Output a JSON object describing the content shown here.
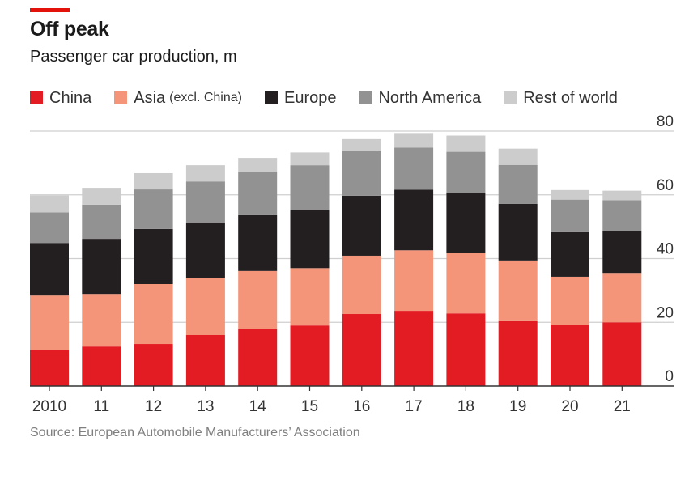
{
  "header": {
    "title": "Off peak",
    "subtitle": "Passenger car production, m"
  },
  "source": "Source: European Automobile Manufacturers’ Association",
  "colors": {
    "accent": "#e3120b",
    "China": "#e31b23",
    "Asia (excl. China)": "#f4957a",
    "Europe": "#231f20",
    "North America": "#929292",
    "Rest of world": "#cccccc",
    "grid": "#cfcfcf",
    "axis": "#333333"
  },
  "legend": [
    {
      "label": "China",
      "note": "",
      "key": "China"
    },
    {
      "label": "Asia",
      "note": "(excl. China)",
      "key": "Asia (excl. China)"
    },
    {
      "label": "Europe",
      "note": "",
      "key": "Europe"
    },
    {
      "label": "North America",
      "note": "",
      "key": "North America"
    },
    {
      "label": "Rest of world",
      "note": "",
      "key": "Rest of world"
    }
  ],
  "chart_data": {
    "type": "bar",
    "stacked": true,
    "title": "Off peak",
    "subtitle": "Passenger car production, m",
    "xlabel": "",
    "ylabel": "",
    "categories": [
      "2010",
      "11",
      "12",
      "13",
      "14",
      "15",
      "16",
      "17",
      "18",
      "19",
      "20",
      "21"
    ],
    "series": [
      {
        "name": "China",
        "values": [
          11.4,
          12.4,
          13.2,
          16.0,
          17.8,
          19.0,
          22.6,
          23.6,
          22.8,
          20.6,
          19.3,
          20.0
        ]
      },
      {
        "name": "Asia (excl. China)",
        "values": [
          17.0,
          16.5,
          18.8,
          18.0,
          18.3,
          18.0,
          18.3,
          19.0,
          19.0,
          18.8,
          15.0,
          15.5
        ]
      },
      {
        "name": "Europe",
        "values": [
          16.5,
          17.3,
          17.3,
          17.3,
          17.5,
          18.3,
          18.8,
          19.0,
          18.8,
          17.8,
          14.0,
          13.2
        ]
      },
      {
        "name": "North America",
        "values": [
          9.6,
          10.7,
          12.4,
          12.9,
          13.7,
          14.0,
          14.0,
          13.2,
          12.9,
          12.2,
          10.2,
          9.6
        ]
      },
      {
        "name": "Rest of world",
        "values": [
          5.3,
          5.3,
          5.1,
          5.1,
          4.3,
          4.0,
          3.8,
          4.6,
          5.1,
          5.1,
          3.0,
          3.0
        ]
      }
    ],
    "yticks": [
      0,
      20,
      40,
      60,
      80
    ],
    "ylim": [
      0,
      80
    ],
    "grid": true,
    "y_axis_position": "right",
    "legend_position": "top"
  }
}
